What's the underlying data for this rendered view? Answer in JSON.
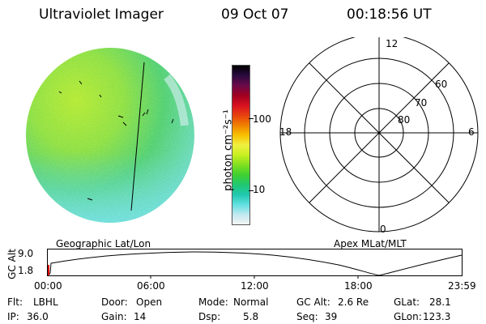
{
  "header": {
    "title": "Ultraviolet Imager",
    "date": "09 Oct 07",
    "time": "00:18:56 UT"
  },
  "colorbar": {
    "unit_label": "photon cm⁻²s⁻¹",
    "ticks": [
      "100",
      "10"
    ],
    "colors": [
      "#000000",
      "#2a0a40",
      "#6a0a4a",
      "#a00020",
      "#d81020",
      "#e84010",
      "#f08000",
      "#f8c000",
      "#f0f040",
      "#c8f020",
      "#80e020",
      "#40d030",
      "#20c870",
      "#20c8b0",
      "#60e0e0",
      "#c0e8f0",
      "#f4f4f4"
    ]
  },
  "polar": {
    "mlt_labels": [
      "12",
      "18",
      "6",
      "0"
    ],
    "lat_labels": [
      "60",
      "70",
      "80"
    ]
  },
  "plot": {
    "left_label": "Geographic Lat/Lon",
    "right_label": "Apex MLat/MLT",
    "ylabel": "GC Alt",
    "yticks": [
      "9.0",
      "1.8"
    ],
    "xticks": [
      "00:00",
      "06:00",
      "12:00",
      "18:00",
      "23:59"
    ]
  },
  "footer": {
    "flt_label": "Flt:",
    "flt_value": "LBHL",
    "ip_label": "IP:",
    "ip_value": "36.0",
    "door_label": "Door:",
    "door_value": "Open",
    "gain_label": "Gain:",
    "gain_value": "14",
    "mode_label": "Mode:",
    "mode_value": "Normal",
    "dsp_label": "Dsp:",
    "dsp_value": "5.8",
    "gcalt_label": "GC Alt:",
    "gcalt_value": "2.6 Re",
    "seq_label": "Seq:",
    "seq_value": "39",
    "glat_label": "GLat:",
    "glat_value": "28.1",
    "glon_label": "GLon:",
    "glon_value": "123.3"
  }
}
